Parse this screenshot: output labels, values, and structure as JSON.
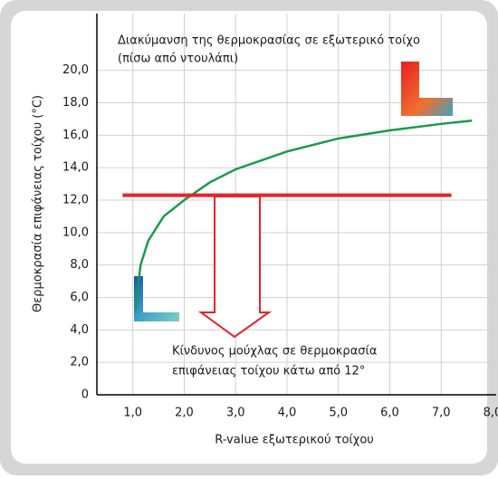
{
  "chart_data": {
    "type": "line",
    "title": [
      "Διακύμανση της θερμοκρασίας σε εξωτερικό τοίχο",
      "(πίσω από ντουλάπι)"
    ],
    "annotation": [
      "Κίνδυνος μούχλας σε θερμοκρασία",
      "επιφάνειας τοίχου κάτω από 12°"
    ],
    "x_label": "R-value εξωτερικού τοίχου",
    "y_label": "Θερμοκρασία επιφάνειας τοίχου (°C)",
    "x": [
      1.05,
      1.15,
      1.3,
      1.6,
      2.0,
      2.5,
      3.0,
      4.0,
      5.0,
      6.0,
      7.0,
      7.6
    ],
    "series": [
      {
        "color": "#1a9a4a",
        "values": [
          5.2,
          8.0,
          9.5,
          11.0,
          12.0,
          13.1,
          13.9,
          15.0,
          15.8,
          16.3,
          16.7,
          16.9
        ]
      }
    ],
    "threshold": {
      "color": "#e8232a",
      "value": 12.3,
      "x": [
        0.8,
        7.2
      ]
    },
    "xlim": [
      0.3,
      8.0
    ],
    "ylim": [
      0,
      23.5
    ],
    "xticks": [
      {
        "value": 1,
        "label": "1,0"
      },
      {
        "value": 2,
        "label": "2,0"
      },
      {
        "value": 3,
        "label": "3,0"
      },
      {
        "value": 4,
        "label": "4,0"
      },
      {
        "value": 5,
        "label": "5,0"
      },
      {
        "value": 6,
        "label": "6,0"
      },
      {
        "value": 7,
        "label": "7,0"
      },
      {
        "value": 8,
        "label": "8,0"
      }
    ],
    "yticks": [
      0,
      {
        "value": 2,
        "label": "2,0"
      },
      {
        "value": 4,
        "label": "4,0"
      },
      {
        "value": 6,
        "label": "6,0"
      },
      {
        "value": 8,
        "label": "8,0"
      },
      {
        "value": 10,
        "label": "10,0"
      },
      {
        "value": 12,
        "label": "12,0"
      },
      {
        "value": 14,
        "label": "14,0"
      },
      {
        "value": 16,
        "label": "16,0"
      },
      {
        "value": 18,
        "label": "18,0"
      },
      {
        "value": 20,
        "label": "20,0"
      }
    ],
    "grid": true
  }
}
